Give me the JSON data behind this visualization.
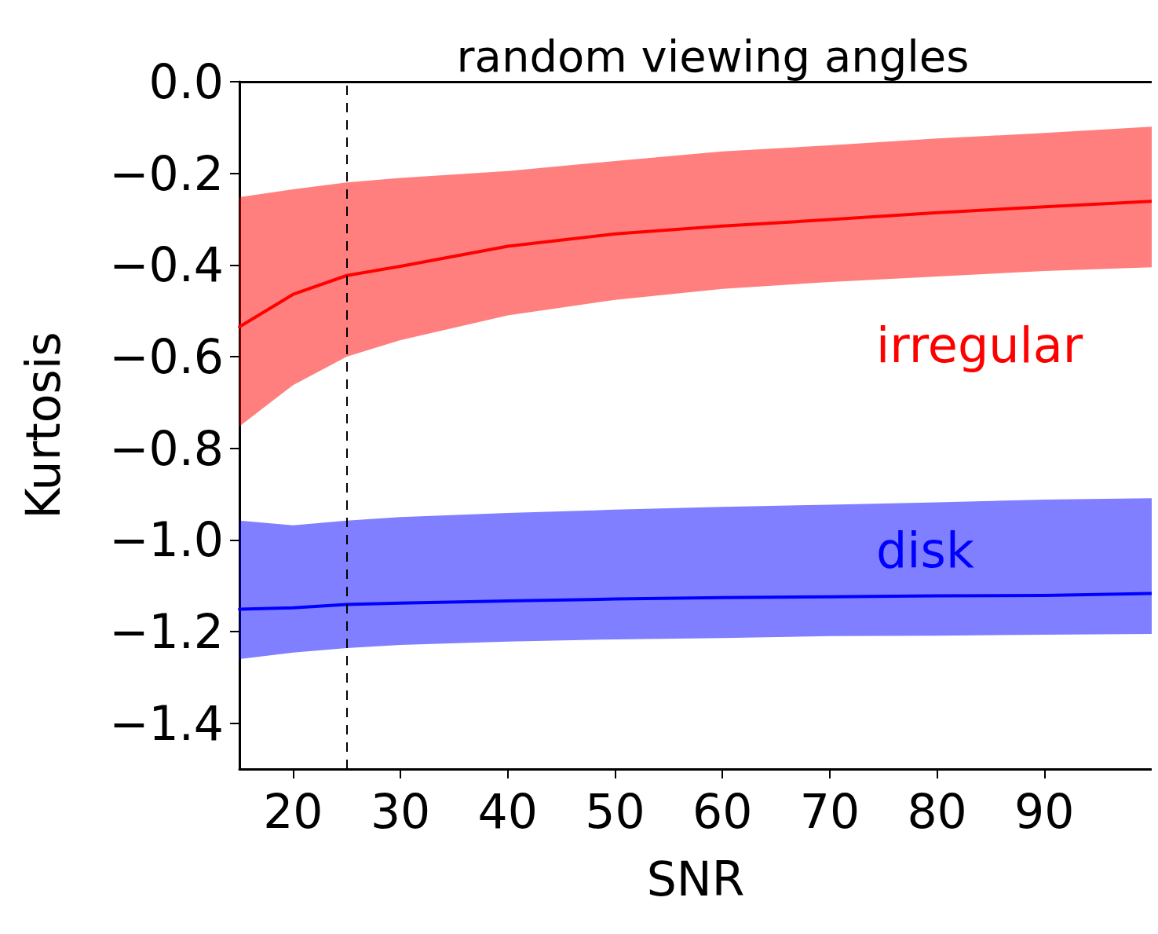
{
  "chart_data": {
    "type": "line",
    "title": "random viewing angles",
    "xlabel": "SNR",
    "ylabel": "Kurtosis",
    "xlim": [
      15,
      100
    ],
    "xticks": [
      20,
      30,
      40,
      50,
      60,
      70,
      80,
      90
    ],
    "ylim": [
      -1.5,
      0
    ],
    "yticks": [
      {
        "value": 0,
        "label": "0.0"
      },
      {
        "value": -0.2,
        "label": "−0.2"
      },
      {
        "value": -0.4,
        "label": "−0.4"
      },
      {
        "value": -0.6,
        "label": "−0.6"
      },
      {
        "value": -0.8,
        "label": "−0.8"
      },
      {
        "value": -1.0,
        "label": "−1.0"
      },
      {
        "value": -1.2,
        "label": "−1.2"
      },
      {
        "value": -1.4,
        "label": "−1.4"
      }
    ],
    "x": [
      15,
      20,
      25,
      30,
      40,
      50,
      60,
      70,
      80,
      90,
      100
    ],
    "series": [
      {
        "name": "irregular",
        "color": "#ff0000",
        "values": [
          -0.535,
          -0.464,
          -0.423,
          -0.403,
          -0.359,
          -0.332,
          -0.315,
          -0.301,
          -0.286,
          -0.273,
          -0.261
        ],
        "lower": [
          -0.752,
          -0.662,
          -0.6,
          -0.564,
          -0.51,
          -0.476,
          -0.452,
          -0.437,
          -0.425,
          -0.413,
          -0.405
        ],
        "upper": [
          -0.252,
          -0.235,
          -0.22,
          -0.21,
          -0.195,
          -0.173,
          -0.152,
          -0.139,
          -0.124,
          -0.112,
          -0.098
        ]
      },
      {
        "name": "disk",
        "color": "#0000ff",
        "values": [
          -1.151,
          -1.148,
          -1.141,
          -1.138,
          -1.133,
          -1.129,
          -1.126,
          -1.124,
          -1.122,
          -1.121,
          -1.117
        ],
        "lower": [
          -1.26,
          -1.246,
          -1.236,
          -1.229,
          -1.222,
          -1.217,
          -1.214,
          -1.21,
          -1.209,
          -1.207,
          -1.205
        ],
        "upper": [
          -0.958,
          -0.968,
          -0.958,
          -0.95,
          -0.941,
          -0.934,
          -0.928,
          -0.923,
          -0.918,
          -0.912,
          -0.909
        ]
      }
    ],
    "ref_lines": [
      {
        "axis": "x",
        "value": 25,
        "line_style": "dashed",
        "color": "#000000"
      }
    ],
    "legend": false,
    "grid": false,
    "marker": "none",
    "line_style": "solid"
  }
}
